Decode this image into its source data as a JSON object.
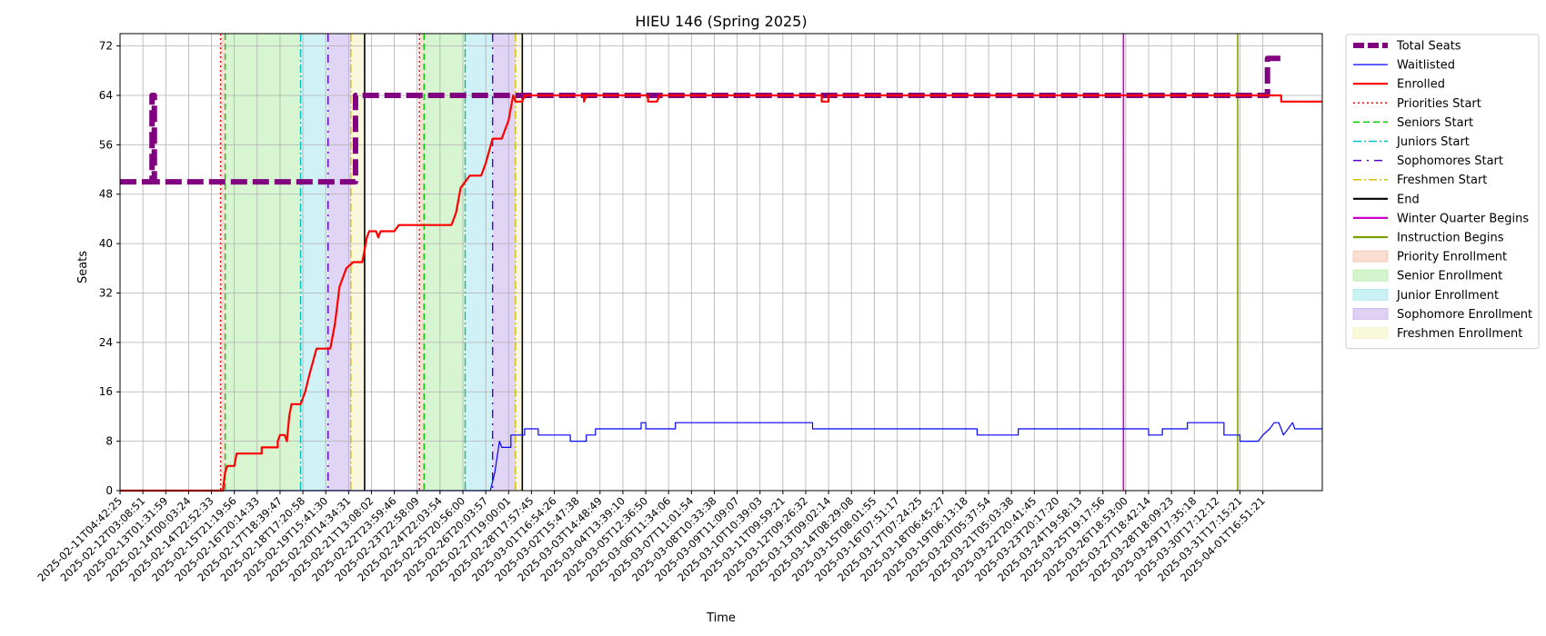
{
  "chart_data": {
    "type": "line",
    "title": "HIEU 146 (Spring 2025)",
    "xlabel": "Time",
    "ylabel": "Seats",
    "ylim": [
      0,
      74
    ],
    "yticks": [
      0,
      8,
      16,
      24,
      32,
      40,
      48,
      56,
      64,
      72
    ],
    "grid": true,
    "legend_position": "outside-right",
    "x_tick_labels": [
      "2025-02-11T04:42:25",
      "2025-02-12T03:08:51",
      "2025-02-13T01:31:59",
      "2025-02-14T00:03:24",
      "2025-02-14T22:52:33",
      "2025-02-15T21:19:56",
      "2025-02-16T20:14:33",
      "2025-02-17T18:39:47",
      "2025-02-18T17:20:58",
      "2025-02-19T15:41:30",
      "2025-02-20T14:34:31",
      "2025-02-21T13:08:02",
      "2025-02-22T23:59:46",
      "2025-02-23T22:58:09",
      "2025-02-24T22:03:54",
      "2025-02-25T20:56:00",
      "2025-02-26T20:03:57",
      "2025-02-27T19:00:01",
      "2025-02-28T17:57:45",
      "2025-03-01T16:54:26",
      "2025-03-02T15:47:38",
      "2025-03-03T14:48:49",
      "2025-03-04T13:39:10",
      "2025-03-05T12:36:50",
      "2025-03-06T11:34:06",
      "2025-03-07T11:01:54",
      "2025-03-08T10:33:38",
      "2025-03-09T11:09:07",
      "2025-03-10T10:39:03",
      "2025-03-11T09:59:21",
      "2025-03-12T09:26:32",
      "2025-03-13T09:02:14",
      "2025-03-14T08:29:08",
      "2025-03-15T08:01:55",
      "2025-03-16T07:51:17",
      "2025-03-17T07:24:25",
      "2025-03-18T06:45:27",
      "2025-03-19T06:13:18",
      "2025-03-20T05:37:54",
      "2025-03-21T05:03:38",
      "2025-03-22T20:41:45",
      "2025-03-23T20:17:20",
      "2025-03-24T19:58:13",
      "2025-03-25T19:17:56",
      "2025-03-26T18:53:00",
      "2025-03-27T18:42:14",
      "2025-03-28T18:09:23",
      "2025-03-29T17:35:18",
      "2025-03-30T17:12:12",
      "2025-03-31T17:15:21",
      "2025-04-01T16:51:21"
    ],
    "x_range": [
      0,
      52.6
    ],
    "series": [
      {
        "name": "Total Seats",
        "color": "#800080",
        "style": "dashed-thick",
        "points": [
          [
            0,
            50
          ],
          [
            1.4,
            50
          ],
          [
            1.4,
            64
          ],
          [
            1.5,
            64
          ],
          [
            1.5,
            50
          ],
          [
            10.3,
            50
          ],
          [
            10.3,
            64
          ],
          [
            50.2,
            64
          ],
          [
            50.2,
            70
          ],
          [
            50.8,
            70
          ]
        ]
      },
      {
        "name": "Waitlisted",
        "color": "#0000ff",
        "style": "solid-thin",
        "points": [
          [
            0,
            0
          ],
          [
            16.2,
            0
          ],
          [
            16.4,
            3
          ],
          [
            16.6,
            8
          ],
          [
            16.7,
            7
          ],
          [
            17.1,
            7
          ],
          [
            17.1,
            9
          ],
          [
            17.7,
            9
          ],
          [
            17.7,
            10
          ],
          [
            18.3,
            10
          ],
          [
            18.3,
            9
          ],
          [
            19.7,
            9
          ],
          [
            19.7,
            8
          ],
          [
            20.4,
            8
          ],
          [
            20.4,
            9
          ],
          [
            20.8,
            9
          ],
          [
            20.8,
            10
          ],
          [
            22.8,
            10
          ],
          [
            22.8,
            11
          ],
          [
            23.0,
            11
          ],
          [
            23.0,
            10
          ],
          [
            24.3,
            10
          ],
          [
            24.3,
            11
          ],
          [
            30.3,
            11
          ],
          [
            30.3,
            10
          ],
          [
            37.5,
            10
          ],
          [
            37.5,
            9
          ],
          [
            39.3,
            9
          ],
          [
            39.3,
            10
          ],
          [
            45.0,
            10
          ],
          [
            45.0,
            9
          ],
          [
            45.6,
            9
          ],
          [
            45.6,
            10
          ],
          [
            46.7,
            10
          ],
          [
            46.7,
            11
          ],
          [
            48.3,
            11
          ],
          [
            48.3,
            9
          ],
          [
            49.0,
            9
          ],
          [
            49.0,
            8
          ],
          [
            49.8,
            8
          ],
          [
            50.0,
            9
          ],
          [
            50.3,
            10
          ],
          [
            50.5,
            11
          ],
          [
            50.7,
            11
          ],
          [
            50.8,
            10
          ],
          [
            50.9,
            9
          ],
          [
            51.1,
            10
          ],
          [
            51.3,
            11
          ],
          [
            51.4,
            10
          ],
          [
            52.6,
            10
          ]
        ]
      },
      {
        "name": "Enrolled",
        "color": "#ff0000",
        "style": "solid",
        "points": [
          [
            0,
            0
          ],
          [
            4.5,
            0
          ],
          [
            4.6,
            3
          ],
          [
            4.7,
            4
          ],
          [
            5.0,
            4
          ],
          [
            5.1,
            6
          ],
          [
            6.2,
            6
          ],
          [
            6.2,
            7
          ],
          [
            6.9,
            7
          ],
          [
            6.9,
            8
          ],
          [
            7.0,
            9
          ],
          [
            7.2,
            9
          ],
          [
            7.3,
            8
          ],
          [
            7.4,
            12
          ],
          [
            7.5,
            14
          ],
          [
            7.9,
            14
          ],
          [
            8.1,
            16
          ],
          [
            8.3,
            19
          ],
          [
            8.6,
            23
          ],
          [
            9.2,
            23
          ],
          [
            9.4,
            27
          ],
          [
            9.6,
            33
          ],
          [
            9.9,
            36
          ],
          [
            10.2,
            37
          ],
          [
            10.6,
            37
          ],
          [
            10.8,
            41
          ],
          [
            10.9,
            42
          ],
          [
            11.2,
            42
          ],
          [
            11.3,
            41
          ],
          [
            11.4,
            42
          ],
          [
            12.0,
            42
          ],
          [
            12.2,
            43
          ],
          [
            14.5,
            43
          ],
          [
            14.7,
            45
          ],
          [
            14.9,
            49
          ],
          [
            15.3,
            51
          ],
          [
            15.8,
            51
          ],
          [
            16.0,
            53
          ],
          [
            16.3,
            57
          ],
          [
            16.7,
            57
          ],
          [
            17.0,
            60
          ],
          [
            17.2,
            64
          ],
          [
            17.3,
            63
          ],
          [
            17.6,
            63
          ],
          [
            17.7,
            64
          ],
          [
            20.3,
            64
          ],
          [
            20.3,
            63
          ],
          [
            20.4,
            64
          ],
          [
            23.1,
            64
          ],
          [
            23.1,
            63
          ],
          [
            23.5,
            63
          ],
          [
            23.6,
            64
          ],
          [
            30.7,
            64
          ],
          [
            30.7,
            63
          ],
          [
            31.0,
            63
          ],
          [
            31.0,
            64
          ],
          [
            50.8,
            64
          ],
          [
            50.8,
            63
          ],
          [
            52.6,
            63
          ]
        ]
      }
    ],
    "markers": [
      {
        "name": "Priorities Start",
        "color": "#ff0000",
        "style": "dotted",
        "x": [
          4.4,
          13.1
        ]
      },
      {
        "name": "Seniors Start",
        "color": "#00cc00",
        "style": "dashed",
        "x": [
          4.6,
          13.3
        ]
      },
      {
        "name": "Juniors Start",
        "color": "#00bfbf",
        "style": "dashdot",
        "x": [
          7.9,
          15.1
        ]
      },
      {
        "name": "Sophomores Start",
        "color": "#5500cc",
        "style": "dashdotted",
        "x": [
          9.1,
          16.3
        ]
      },
      {
        "name": "Freshmen Start",
        "color": "#d4c000",
        "style": "dashdot",
        "x": [
          10.1,
          17.3
        ]
      },
      {
        "name": "End",
        "color": "#000000",
        "style": "solid",
        "x": [
          10.7,
          17.6
        ]
      },
      {
        "name": "Winter Quarter Begins",
        "color": "#cc00cc",
        "style": "solid",
        "x": [
          43.9
        ]
      },
      {
        "name": "Instruction Begins",
        "color": "#7aa000",
        "style": "solid",
        "x": [
          48.9
        ]
      }
    ],
    "spans": [
      {
        "name": "Priority Enrollment",
        "color": "#f6c5b0",
        "ranges": [
          [
            4.4,
            4.6
          ],
          [
            13.1,
            13.3
          ]
        ]
      },
      {
        "name": "Senior Enrollment",
        "color": "#b6ecaa",
        "ranges": [
          [
            4.6,
            7.9
          ],
          [
            13.3,
            15.1
          ]
        ]
      },
      {
        "name": "Junior Enrollment",
        "color": "#a9e8ef",
        "ranges": [
          [
            7.9,
            9.1
          ],
          [
            15.1,
            16.3
          ]
        ]
      },
      {
        "name": "Sophomore Enrollment",
        "color": "#c9b3ec",
        "ranges": [
          [
            9.1,
            10.1
          ],
          [
            16.3,
            17.3
          ]
        ]
      },
      {
        "name": "Freshmen Enrollment",
        "color": "#f4f3c2",
        "ranges": [
          [
            10.1,
            10.7
          ],
          [
            17.3,
            17.6
          ]
        ]
      }
    ],
    "legend": [
      {
        "label": "Total Seats",
        "kind": "line",
        "color": "#800080",
        "style": "dashed-thick"
      },
      {
        "label": "Waitlisted",
        "kind": "line",
        "color": "#0000ff",
        "style": "solid-thin"
      },
      {
        "label": "Enrolled",
        "kind": "line",
        "color": "#ff0000",
        "style": "solid"
      },
      {
        "label": "Priorities Start",
        "kind": "line",
        "color": "#ff0000",
        "style": "dotted"
      },
      {
        "label": "Seniors Start",
        "kind": "line",
        "color": "#00cc00",
        "style": "dashed"
      },
      {
        "label": "Juniors Start",
        "kind": "line",
        "color": "#00bfbf",
        "style": "dashdot"
      },
      {
        "label": "Sophomores Start",
        "kind": "line",
        "color": "#5500cc",
        "style": "dashdotted"
      },
      {
        "label": "Freshmen Start",
        "kind": "line",
        "color": "#d4c000",
        "style": "dashdot"
      },
      {
        "label": "End",
        "kind": "line",
        "color": "#000000",
        "style": "solid"
      },
      {
        "label": "Winter Quarter Begins",
        "kind": "line",
        "color": "#cc00cc",
        "style": "solid"
      },
      {
        "label": "Instruction Begins",
        "kind": "line",
        "color": "#7aa000",
        "style": "solid"
      },
      {
        "label": "Priority Enrollment",
        "kind": "patch",
        "color": "#f6c5b0"
      },
      {
        "label": "Senior Enrollment",
        "kind": "patch",
        "color": "#b6ecaa"
      },
      {
        "label": "Junior Enrollment",
        "kind": "patch",
        "color": "#a9e8ef"
      },
      {
        "label": "Sophomore Enrollment",
        "kind": "patch",
        "color": "#c9b3ec"
      },
      {
        "label": "Freshmen Enrollment",
        "kind": "patch",
        "color": "#f4f3c2"
      }
    ]
  }
}
